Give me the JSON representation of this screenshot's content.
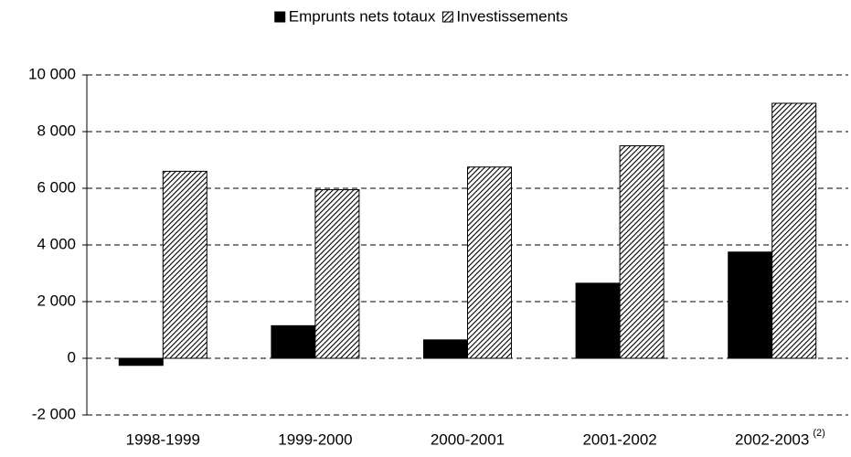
{
  "chart_data": {
    "type": "bar",
    "categories": [
      "1998-1999",
      "1999-2000",
      "2000-2001",
      "2001-2002",
      "2002-2003"
    ],
    "category_footnotes": [
      null,
      null,
      null,
      null,
      "(2)"
    ],
    "series": [
      {
        "name": "Emprunts nets totaux",
        "color": "#000000",
        "pattern": "solid",
        "values": [
          -250,
          1150,
          650,
          2650,
          3750
        ]
      },
      {
        "name": "Investissements",
        "color": "#000000",
        "pattern": "hatch",
        "values": [
          6600,
          5950,
          6750,
          7500,
          9000
        ]
      }
    ],
    "ylim": [
      -2000,
      10000
    ],
    "yticks": [
      {
        "value": -2000,
        "label": "-2 000"
      },
      0,
      {
        "value": 2000,
        "label": "2 000"
      },
      {
        "value": 4000,
        "label": "4 000"
      },
      {
        "value": 6000,
        "label": "6 000"
      },
      {
        "value": 8000,
        "label": "8 000"
      },
      {
        "value": 10000,
        "label": "10 000"
      }
    ],
    "grid": true,
    "legend": "top"
  }
}
